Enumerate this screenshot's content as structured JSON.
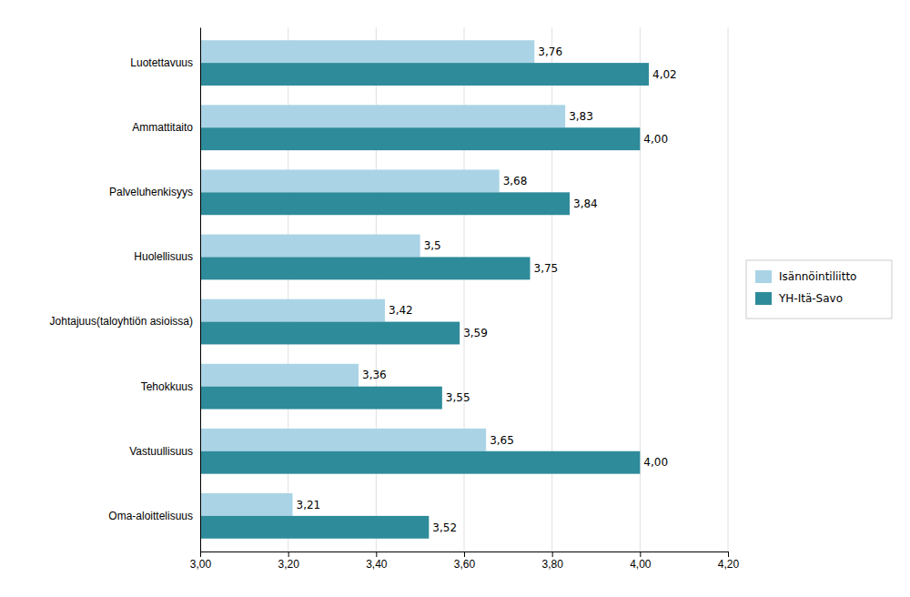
{
  "chart_data": {
    "type": "bar",
    "orientation": "horizontal",
    "categories": [
      "Oma-aloittelisuus",
      "Vastuullisuus",
      "Tehokkuus",
      "Johtajuus(taloyhtiön asioissa)",
      "Huolellisuus",
      "Palveluhenkisyys",
      "Ammattitaito",
      "Luotettavuus"
    ],
    "series": [
      {
        "name": "Isännöintiliitto",
        "color": "#aad4e6",
        "values": [
          3.21,
          3.65,
          3.36,
          3.42,
          3.5,
          3.68,
          3.83,
          3.76
        ],
        "value_labels": [
          "3,21",
          "3,65",
          "3,36",
          "3,42",
          "3,5",
          "3,68",
          "3,83",
          "3,76"
        ]
      },
      {
        "name": "YH-Itä-Savo",
        "color": "#2e8b9a",
        "values": [
          3.52,
          4.0,
          3.55,
          3.59,
          3.75,
          3.84,
          4.0,
          4.02
        ],
        "value_labels": [
          "3,52",
          "4,00",
          "3,55",
          "3,59",
          "3,75",
          "3,84",
          "4,00",
          "4,02"
        ]
      }
    ],
    "xlim": [
      3.0,
      4.2
    ],
    "xticks": [
      {
        "value": 3.0,
        "label": "3,00"
      },
      {
        "value": 3.2,
        "label": "3,20"
      },
      {
        "value": 3.4,
        "label": "3,40"
      },
      {
        "value": 3.6,
        "label": "3,60"
      },
      {
        "value": 3.8,
        "label": "3,80"
      },
      {
        "value": 4.0,
        "label": "4,00"
      },
      {
        "value": 4.2,
        "label": "4,20"
      }
    ],
    "grid": true,
    "legend": "right",
    "data_labels": true
  }
}
